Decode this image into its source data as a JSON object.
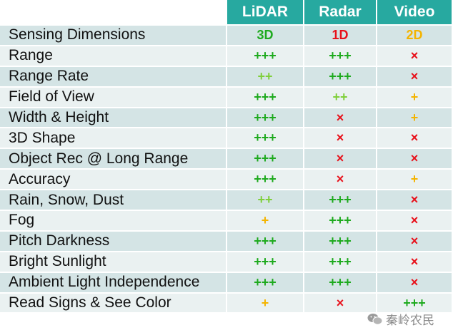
{
  "headers": [
    "LiDAR",
    "Radar",
    "Video"
  ],
  "rows": [
    {
      "label": "Sensing Dimensions",
      "values": [
        "3D",
        "1D",
        "2D"
      ]
    },
    {
      "label": "Range",
      "values": [
        "+++",
        "+++",
        "×"
      ]
    },
    {
      "label": "Range Rate",
      "values": [
        "++",
        "+++",
        "×"
      ]
    },
    {
      "label": "Field of View",
      "values": [
        "+++",
        "++",
        "+"
      ]
    },
    {
      "label": "Width & Height",
      "values": [
        "+++",
        "×",
        "+"
      ]
    },
    {
      "label": "3D Shape",
      "values": [
        "+++",
        "×",
        "×"
      ]
    },
    {
      "label": "Object Rec @ Long Range",
      "values": [
        "+++",
        "×",
        "×"
      ]
    },
    {
      "label": "Accuracy",
      "values": [
        "+++",
        "×",
        "+"
      ]
    },
    {
      "label": "Rain, Snow, Dust",
      "values": [
        "++",
        "+++",
        "×"
      ]
    },
    {
      "label": "Fog",
      "values": [
        "+",
        "+++",
        "×"
      ]
    },
    {
      "label": "Pitch Darkness",
      "values": [
        "+++",
        "+++",
        "×"
      ]
    },
    {
      "label": "Bright Sunlight",
      "values": [
        "+++",
        "+++",
        "×"
      ]
    },
    {
      "label": "Ambient Light Independence",
      "values": [
        "+++",
        "+++",
        "×"
      ]
    },
    {
      "label": "Read Signs & See Color",
      "values": [
        "+",
        "×",
        "+++"
      ]
    }
  ],
  "colors": {
    "header_bg": "#27a9a0",
    "row_dark": "#d4e4e5",
    "row_light": "#eaf1f1",
    "strong": "#1eaa1e",
    "medium": "#7fcf3a",
    "weak": "#f4b400",
    "none": "#e8101a"
  },
  "watermark": {
    "text": "秦岭农民",
    "icon": "wechat-icon"
  }
}
